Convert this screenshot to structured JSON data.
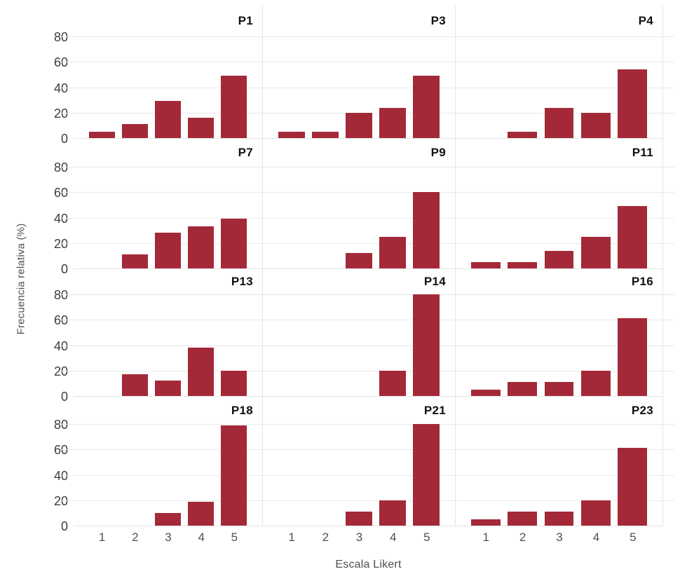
{
  "chart_data": {
    "type": "bar",
    "layout": "facet-grid-4x3",
    "x_axis_label": "Escala Likert",
    "y_axis_label": "Frecuencia relativa (%)",
    "categories": [
      "1",
      "2",
      "3",
      "4",
      "5"
    ],
    "yticks": [
      0,
      20,
      40,
      60,
      80
    ],
    "ylim": [
      0,
      88
    ],
    "grid": true,
    "bar_color": "#a42938",
    "gridline_color": "#e9e9e9",
    "facets": [
      {
        "title": "P1",
        "values": [
          5,
          11,
          29,
          16,
          49
        ]
      },
      {
        "title": "P3",
        "values": [
          5,
          5,
          20,
          24,
          49
        ]
      },
      {
        "title": "P4",
        "values": [
          0,
          5,
          24,
          20,
          54
        ]
      },
      {
        "title": "P7",
        "values": [
          0,
          11,
          28,
          33,
          39
        ]
      },
      {
        "title": "P9",
        "values": [
          0,
          0,
          12,
          25,
          60
        ]
      },
      {
        "title": "P11",
        "values": [
          5,
          5,
          14,
          25,
          49
        ]
      },
      {
        "title": "P13",
        "values": [
          0,
          17,
          12,
          38,
          20
        ]
      },
      {
        "title": "P14",
        "values": [
          0,
          0,
          0,
          20,
          80
        ]
      },
      {
        "title": "P16",
        "values": [
          5,
          11,
          11,
          20,
          61
        ]
      },
      {
        "title": "P18",
        "values": [
          0,
          0,
          10,
          19,
          79
        ]
      },
      {
        "title": "P21",
        "values": [
          0,
          0,
          11,
          20,
          80
        ]
      },
      {
        "title": "P23",
        "values": [
          5,
          11,
          11,
          20,
          61
        ]
      }
    ]
  }
}
